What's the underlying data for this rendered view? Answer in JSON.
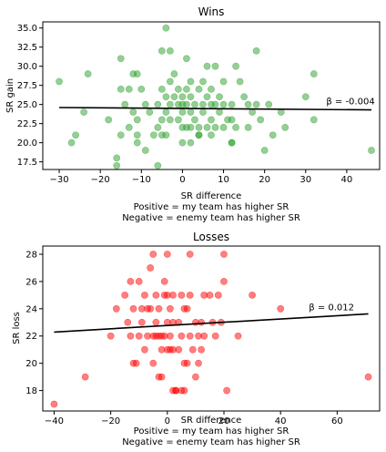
{
  "chart_data": [
    {
      "id": "wins",
      "type": "scatter",
      "title": "Wins",
      "xlabel_lines": [
        "SR difference",
        "Positive = my team has higher SR",
        "Negative = enemy team has higher SR"
      ],
      "ylabel": "SR gain",
      "xlim": [
        -34,
        48
      ],
      "ylim": [
        16.5,
        35.8
      ],
      "xticks": [
        -30,
        -20,
        -10,
        0,
        10,
        20,
        30,
        40
      ],
      "yticks": [
        17.5,
        20.0,
        22.5,
        25.0,
        27.5,
        30.0,
        32.5,
        35.0
      ],
      "ytick_decimals": 1,
      "point_color": "#2ca02c",
      "points": [
        [
          -30,
          28
        ],
        [
          -27,
          20
        ],
        [
          -26,
          21
        ],
        [
          -24,
          24
        ],
        [
          -23,
          29
        ],
        [
          -18,
          23
        ],
        [
          -16,
          18
        ],
        [
          -16,
          17
        ],
        [
          -15,
          31
        ],
        [
          -15,
          27
        ],
        [
          -15,
          21
        ],
        [
          -14,
          25
        ],
        [
          -13,
          22
        ],
        [
          -13,
          27
        ],
        [
          -12,
          29
        ],
        [
          -12,
          24
        ],
        [
          -11,
          29
        ],
        [
          -11,
          23
        ],
        [
          -11,
          21
        ],
        [
          -11,
          20
        ],
        [
          -10,
          27
        ],
        [
          -9,
          25
        ],
        [
          -9,
          19
        ],
        [
          -8,
          24
        ],
        [
          -7,
          21
        ],
        [
          -6,
          22
        ],
        [
          -6,
          25
        ],
        [
          -6,
          17
        ],
        [
          -5,
          32
        ],
        [
          -5,
          27
        ],
        [
          -5,
          23
        ],
        [
          -5,
          21
        ],
        [
          -4,
          35
        ],
        [
          -4,
          26
        ],
        [
          -4,
          24
        ],
        [
          -4,
          21
        ],
        [
          -3,
          32
        ],
        [
          -3,
          28
        ],
        [
          -3,
          25
        ],
        [
          -3,
          23
        ],
        [
          -2,
          29
        ],
        [
          -2,
          26
        ],
        [
          -1,
          25
        ],
        [
          -1,
          23
        ],
        [
          -1,
          27
        ],
        [
          0,
          26
        ],
        [
          0,
          24
        ],
        [
          0,
          22
        ],
        [
          0,
          20
        ],
        [
          0,
          25
        ],
        [
          1,
          31
        ],
        [
          1,
          27
        ],
        [
          1,
          25
        ],
        [
          1,
          22
        ],
        [
          2,
          26
        ],
        [
          2,
          28
        ],
        [
          2,
          24
        ],
        [
          2,
          22
        ],
        [
          2,
          20
        ],
        [
          3,
          25
        ],
        [
          3,
          23
        ],
        [
          4,
          21
        ],
        [
          4,
          22
        ],
        [
          4,
          27
        ],
        [
          4,
          21
        ],
        [
          5,
          25
        ],
        [
          5,
          28
        ],
        [
          5,
          24
        ],
        [
          6,
          30
        ],
        [
          6,
          26
        ],
        [
          6,
          22
        ],
        [
          7,
          27
        ],
        [
          7,
          25
        ],
        [
          7,
          23
        ],
        [
          7,
          21
        ],
        [
          8,
          30
        ],
        [
          8,
          25
        ],
        [
          8,
          22
        ],
        [
          9,
          26
        ],
        [
          9,
          24
        ],
        [
          10,
          28
        ],
        [
          10,
          25
        ],
        [
          10,
          22
        ],
        [
          11,
          23
        ],
        [
          12,
          25
        ],
        [
          12,
          20
        ],
        [
          12,
          23
        ],
        [
          12,
          20
        ],
        [
          13,
          22
        ],
        [
          13,
          30
        ],
        [
          14,
          28
        ],
        [
          15,
          26
        ],
        [
          16,
          25
        ],
        [
          16,
          22
        ],
        [
          17,
          24
        ],
        [
          18,
          32
        ],
        [
          18,
          25
        ],
        [
          19,
          23
        ],
        [
          20,
          19
        ],
        [
          21,
          25
        ],
        [
          22,
          21
        ],
        [
          24,
          24
        ],
        [
          25,
          22
        ],
        [
          30,
          26
        ],
        [
          32,
          23
        ],
        [
          32,
          29
        ],
        [
          46,
          19
        ]
      ],
      "regression": {
        "x_start": -30,
        "x_end": 46,
        "intercept": 24.48,
        "slope": -0.004
      },
      "annotation": {
        "text": "β = -0.004",
        "x": 35,
        "y": 25.0
      }
    },
    {
      "id": "losses",
      "type": "scatter",
      "title": "Losses",
      "xlabel_lines": [
        "SR difference",
        "Positive = my team has higher SR",
        "Negative = enemy team has higher SR"
      ],
      "ylabel": "SR loss",
      "xlim": [
        -44,
        75
      ],
      "ylim": [
        16.5,
        28.6
      ],
      "xticks": [
        -40,
        -20,
        0,
        20,
        40,
        60
      ],
      "yticks": [
        18,
        20,
        22,
        24,
        26,
        28
      ],
      "ytick_decimals": 0,
      "point_color": "#ff0000",
      "points": [
        [
          -40,
          17
        ],
        [
          -29,
          19
        ],
        [
          -20,
          22
        ],
        [
          -18,
          24
        ],
        [
          -15,
          25
        ],
        [
          -14,
          23
        ],
        [
          -13,
          26
        ],
        [
          -13,
          22
        ],
        [
          -12,
          20
        ],
        [
          -12,
          24
        ],
        [
          -11,
          20
        ],
        [
          -10,
          26
        ],
        [
          -10,
          22
        ],
        [
          -9,
          24
        ],
        [
          -9,
          23
        ],
        [
          -8,
          21
        ],
        [
          -8,
          25
        ],
        [
          -7,
          22
        ],
        [
          -7,
          24
        ],
        [
          -6,
          27
        ],
        [
          -6,
          24
        ],
        [
          -5,
          28
        ],
        [
          -5,
          22
        ],
        [
          -5,
          20
        ],
        [
          -4,
          25
        ],
        [
          -4,
          23
        ],
        [
          -4,
          22
        ],
        [
          -3,
          19
        ],
        [
          -3,
          22
        ],
        [
          -3,
          24
        ],
        [
          -2,
          21
        ],
        [
          -2,
          22
        ],
        [
          -2,
          19
        ],
        [
          -1,
          25
        ],
        [
          -1,
          26
        ],
        [
          -1,
          22
        ],
        [
          0,
          28
        ],
        [
          0,
          25
        ],
        [
          0,
          23
        ],
        [
          0,
          21
        ],
        [
          1,
          21
        ],
        [
          1,
          24
        ],
        [
          1,
          22
        ],
        [
          2,
          25
        ],
        [
          2,
          23
        ],
        [
          2,
          21
        ],
        [
          2,
          18
        ],
        [
          3,
          18
        ],
        [
          3,
          18
        ],
        [
          4,
          23
        ],
        [
          4,
          21
        ],
        [
          5,
          22
        ],
        [
          5,
          25
        ],
        [
          5,
          18
        ],
        [
          6,
          24
        ],
        [
          6,
          20
        ],
        [
          6,
          18
        ],
        [
          7,
          24
        ],
        [
          7,
          20
        ],
        [
          8,
          28
        ],
        [
          8,
          25
        ],
        [
          8,
          22
        ],
        [
          9,
          21
        ],
        [
          10,
          23
        ],
        [
          10,
          19
        ],
        [
          11,
          22
        ],
        [
          11,
          20
        ],
        [
          12,
          23
        ],
        [
          12,
          21
        ],
        [
          13,
          25
        ],
        [
          13,
          22
        ],
        [
          15,
          25
        ],
        [
          16,
          23
        ],
        [
          17,
          22
        ],
        [
          18,
          25
        ],
        [
          19,
          23
        ],
        [
          20,
          28
        ],
        [
          20,
          26
        ],
        [
          21,
          18
        ],
        [
          25,
          22
        ],
        [
          30,
          25
        ],
        [
          40,
          24
        ],
        [
          71,
          19
        ]
      ],
      "regression": {
        "x_start": -40,
        "x_end": 71,
        "intercept": 22.77,
        "slope": 0.012
      },
      "annotation": {
        "text": "β = 0.012",
        "x": 50,
        "y": 23.9
      }
    }
  ]
}
